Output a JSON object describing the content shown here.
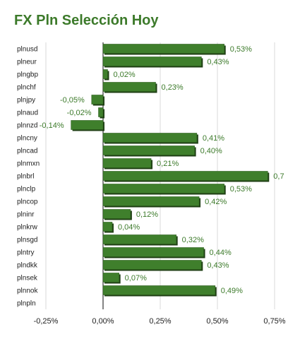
{
  "title": "FX Pln Selección Hoy",
  "colors": {
    "bar": "#3f7f2c",
    "bar_shadow": "#1f3f14",
    "title": "#3c7a2a",
    "value_label": "#3c7a2a",
    "grid": "#d9d9d9",
    "zero_line": "#333333"
  },
  "chart_data": {
    "type": "bar",
    "orientation": "horizontal",
    "title": "FX Pln Selección Hoy",
    "xlabel": "",
    "ylabel": "",
    "categories": [
      "plnusd",
      "plneur",
      "plngbp",
      "plnchf",
      "plnjpy",
      "plnaud",
      "plnnzd",
      "plncny",
      "plncad",
      "plnmxn",
      "plnbrl",
      "plnclp",
      "plncop",
      "plninr",
      "plnkrw",
      "plnsgd",
      "plntry",
      "plndkk",
      "plnsek",
      "plnnok",
      "plnpln"
    ],
    "values": [
      0.53,
      0.43,
      0.02,
      0.23,
      -0.05,
      -0.02,
      -0.14,
      0.41,
      0.4,
      0.21,
      0.72,
      0.53,
      0.42,
      0.12,
      0.04,
      0.32,
      0.44,
      0.43,
      0.07,
      0.49,
      0.0
    ],
    "value_labels": [
      "0,53%",
      "0,43%",
      "0,02%",
      "0,23%",
      "-0,05%",
      "-0,02%",
      "-0,14%",
      "0,41%",
      "0,40%",
      "0,21%",
      "0,7",
      "0,53%",
      "0,42%",
      "0,12%",
      "0,04%",
      "0,32%",
      "0,44%",
      "0,43%",
      "0,07%",
      "0,49%",
      ""
    ],
    "xlim": [
      -0.25,
      0.75
    ],
    "xticks": [
      -0.25,
      0,
      0.25,
      0.5,
      0.75
    ],
    "xtick_labels": [
      "-0,25%",
      "0,00%",
      "0,25%",
      "0,50%",
      "0,75%"
    ],
    "grid": true,
    "legend": "none"
  }
}
